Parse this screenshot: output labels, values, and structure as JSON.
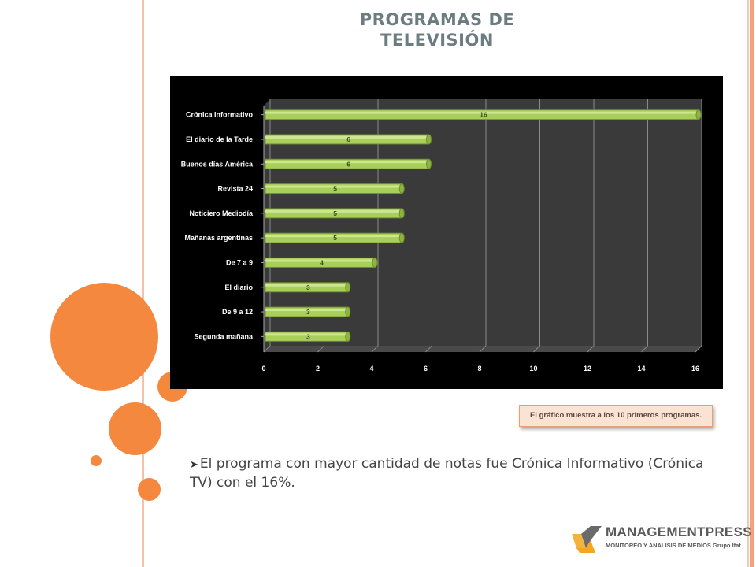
{
  "slide": {
    "title_line1": "PROGRAMAS DE",
    "title_line2": "TELEVISIÓN",
    "note": "El gráfico muestra a los 10 primeros programas.",
    "bullet_text": "El programa con mayor cantidad de notas fue Crónica Informativo (Crónica TV) con el 16%."
  },
  "logo": {
    "name": "MANAGEMENTPRESS",
    "tagline": "MONITOREO Y ANALISIS DE MEDIOS Grupo Ifat"
  },
  "colors": {
    "accent": "#f5883f",
    "bar": "#a9cf5b",
    "plot_bg": "#3a3a3a"
  },
  "chart_data": {
    "type": "bar",
    "orientation": "horizontal",
    "categories": [
      "Crónica Informativo",
      "El diario de la Tarde",
      "Buenos días América",
      "Revista 24",
      "Noticiero Mediodía",
      "Mañanas argentinas",
      "De 7 a 9",
      "El diario",
      "De 9 a 12",
      "Segunda mañana"
    ],
    "values": [
      16,
      6,
      6,
      5,
      5,
      5,
      4,
      3,
      3,
      3
    ],
    "xlim": [
      0,
      16
    ],
    "xticks": [
      0,
      2,
      4,
      6,
      8,
      10,
      12,
      14,
      16
    ],
    "grid": true,
    "data_labels": true
  }
}
